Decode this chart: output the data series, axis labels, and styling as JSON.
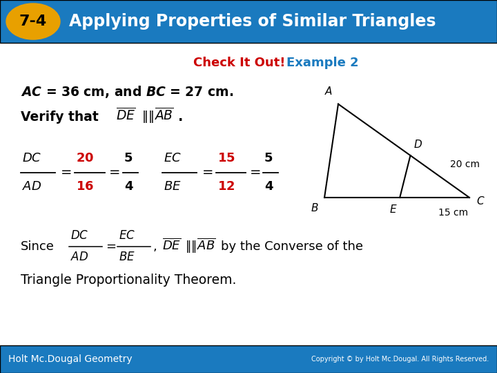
{
  "header_bg_color": "#1a7abf",
  "header_text": "Applying Properties of Similar Triangles",
  "header_badge_text": "7-4",
  "header_badge_bg": "#e8a000",
  "body_bg_color": "#ffffff",
  "check_color": "#cc0000",
  "example_color": "#1a7abf",
  "red_color": "#cc0000",
  "footer_left": "Holt Mc.Dougal Geometry",
  "footer_bg": "#1a7abf",
  "footer_copyright": "Copyright © by Holt Mc.Dougal. All Rights Reserved."
}
